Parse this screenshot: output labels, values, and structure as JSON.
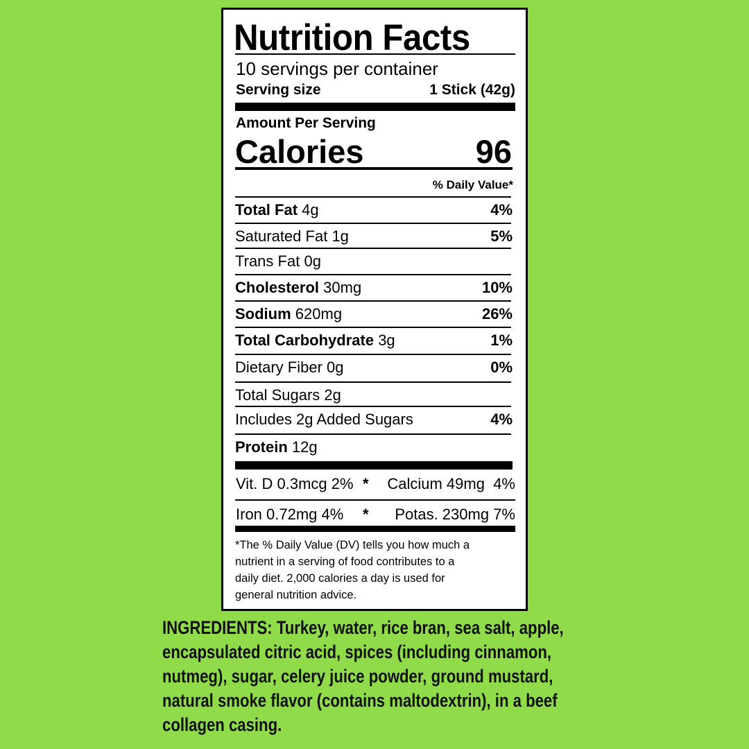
{
  "background_color": "#8fdb4a",
  "label": {
    "title": "Nutrition Facts",
    "servings_per_container": "10 servings per container",
    "serving_size_label": "Serving size",
    "serving_size_value": "1 Stick (42g)",
    "amount_per_serving": "Amount Per Serving",
    "calories_label": "Calories",
    "calories_value": "96",
    "daily_value_header": "% Daily Value*",
    "nutrients": [
      {
        "name": "Total Fat",
        "amount": "4g",
        "dv": "4%",
        "bold": true
      },
      {
        "name": "Saturated Fat",
        "amount": "1g",
        "dv": "5%",
        "bold": false
      },
      {
        "name": "Trans Fat",
        "amount": "0g",
        "dv": "",
        "bold": false
      },
      {
        "name": "Cholesterol",
        "amount": "30mg",
        "dv": "10%",
        "bold": true
      },
      {
        "name": "Sodium",
        "amount": "620mg",
        "dv": "26%",
        "bold": true
      },
      {
        "name": "Total Carbohydrate",
        "amount": "3g",
        "dv": "1%",
        "bold": true
      },
      {
        "name": "Dietary Fiber",
        "amount": "0g",
        "dv": "0%",
        "bold": false
      },
      {
        "name": "Total Sugars",
        "amount": "2g",
        "dv": "",
        "bold": false
      },
      {
        "name": "Includes 2g Added Sugars",
        "amount": "",
        "dv": "4%",
        "bold": false
      },
      {
        "name": "Protein",
        "amount": "12g",
        "dv": "",
        "bold": true
      }
    ],
    "vitamins": [
      {
        "left": "Vit. D 0.3mcg 2%",
        "sep": "*",
        "right": "Calcium 49mg  4%"
      },
      {
        "left": "Iron 0.72mg 4%",
        "sep": "*",
        "right": "Potas. 230mg 7%"
      }
    ],
    "footnote_lines": [
      "*The % Daily Value (DV) tells you how much a",
      "nutrient in a serving of food contributes to a",
      "daily diet. 2,000 calories a day is used for",
      "general nutrition advice."
    ]
  },
  "ingredients": {
    "lines": [
      "INGREDIENTS: Turkey, water, rice bran, sea salt, apple,",
      "encapsulated citric acid, spices (including cinnamon,",
      "nutmeg), sugar, celery juice powder, ground mustard,",
      "natural smoke flavor (contains maltodextrin), in a beef",
      "collagen casing."
    ]
  }
}
